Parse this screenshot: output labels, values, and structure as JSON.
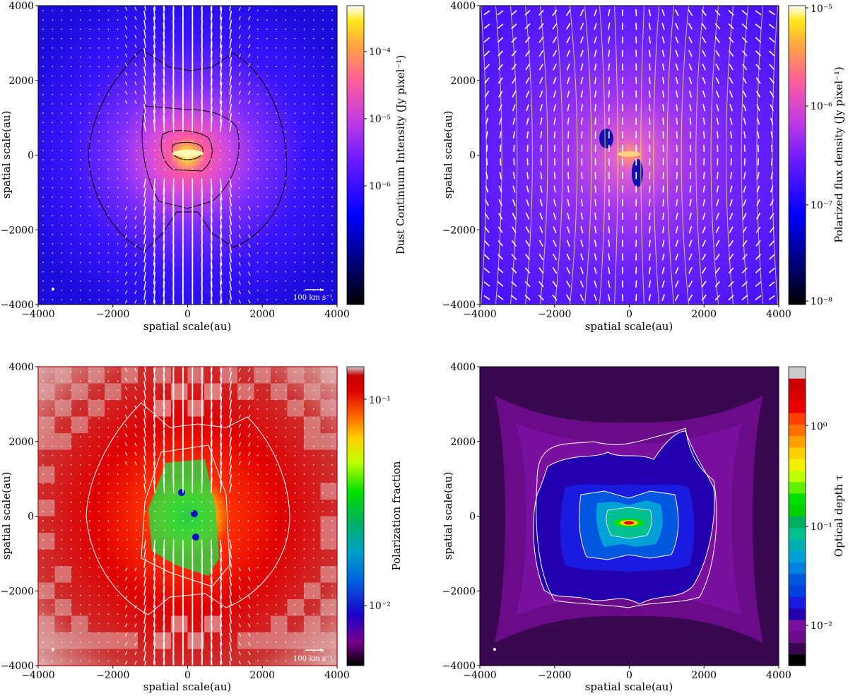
{
  "chart_data": [
    {
      "panel": "top-left",
      "type": "heatmap",
      "colormap": "gnuplot2",
      "xlabel": "spatial scale(au)",
      "ylabel": "spatial scale(au)",
      "xlim": [
        -4000,
        4000
      ],
      "ylim": [
        -4000,
        4000
      ],
      "xticks": [
        "−4000",
        "−2000",
        "0",
        "2000",
        "4000"
      ],
      "yticks": [
        "−4000",
        "−2000",
        "0",
        "2000",
        "4000"
      ],
      "colorbar_label": "Dust Continuum Intensity (Jy pixel⁻¹)",
      "colorbar_scale": "log",
      "colorbar_range": [
        2e-07,
        0.0003
      ],
      "colorbar_ticks": [
        "10⁻⁴",
        "10⁻⁵",
        "10⁻⁶"
      ],
      "contours": "black",
      "overlay": "velocity vectors (white)",
      "scale_bar_label": "100 km s⁻¹"
    },
    {
      "panel": "top-right",
      "type": "heatmap",
      "colormap": "gnuplot2",
      "xlabel": "spatial scale(au)",
      "ylabel": "spatial scale(au)",
      "xlim": [
        -4000,
        4000
      ],
      "ylim": [
        -4000,
        4000
      ],
      "xticks": [
        "−4000",
        "−2000",
        "0",
        "2000",
        "4000"
      ],
      "yticks": [
        "−4000",
        "−2000",
        "0",
        "2000",
        "4000"
      ],
      "colorbar_label": "Polarized flux density (Jy pixel⁻¹)",
      "colorbar_scale": "log",
      "colorbar_range": [
        1e-08,
        1e-05
      ],
      "colorbar_ticks": [
        "10⁻⁵",
        "10⁻⁶",
        "10⁻⁷",
        "10⁻⁸"
      ],
      "overlay": "polarization vectors (white) and magnetic field lines (yellow)"
    },
    {
      "panel": "bottom-left",
      "type": "heatmap",
      "colormap": "nipy_spectral",
      "xlabel": "spatial scale(au)",
      "ylabel": "spatial scale(au)",
      "xlim": [
        -4000,
        4000
      ],
      "ylim": [
        -4000,
        4000
      ],
      "xticks": [
        "−4000",
        "−2000",
        "0",
        "2000",
        "4000"
      ],
      "yticks": [
        "−4000",
        "−2000",
        "0",
        "2000",
        "4000"
      ],
      "colorbar_label": "Polarization fraction",
      "colorbar_scale": "log",
      "colorbar_range": [
        0.004,
        0.17
      ],
      "colorbar_ticks": [
        "10⁻¹",
        "10⁻²"
      ],
      "contours": "white",
      "overlay": "velocity vectors (white)",
      "scale_bar_label": "100 km s⁻¹"
    },
    {
      "panel": "bottom-right",
      "type": "heatmap",
      "colormap": "nipy_spectral (discrete)",
      "xlabel": "spatial scale(au)",
      "ylabel": "spatial scale(au)",
      "xlim": [
        -4000,
        4000
      ],
      "ylim": [
        -4000,
        4000
      ],
      "xticks": [
        "−4000",
        "−2000",
        "0",
        "2000",
        "4000"
      ],
      "yticks": [
        "−4000",
        "−2000",
        "0",
        "2000",
        "4000"
      ],
      "colorbar_label": "Optical depth τ",
      "colorbar_scale": "log",
      "colorbar_range": [
        0.0025,
        4.5
      ],
      "colorbar_ticks": [
        "10⁰",
        "10⁻¹",
        "10⁻²"
      ],
      "contours": "white"
    }
  ]
}
